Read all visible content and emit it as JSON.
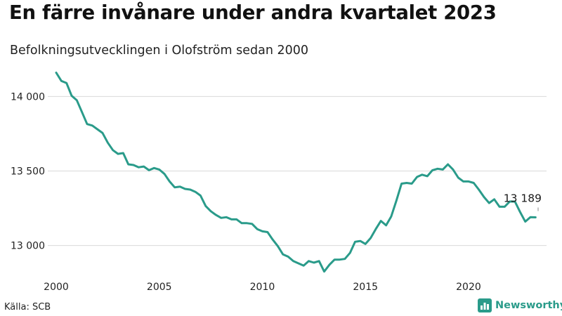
{
  "title": "En färre invånare under andra kvartalet 2023",
  "subtitle": "Befolkningsutvecklingen i Olofström sedan 2000",
  "source": "Källa: SCB",
  "brand": {
    "name": "Newsworthy",
    "icon": "newsworthy-logo-icon"
  },
  "colors": {
    "line": "#2a9b8a",
    "grid": "#d9d9d9",
    "text": "#222222"
  },
  "chart_data": {
    "type": "line",
    "title": "En färre invånare under andra kvartalet 2023",
    "subtitle": "Befolkningsutvecklingen i Olofström sedan 2000",
    "xlabel": "",
    "ylabel": "",
    "grid": true,
    "legend": "none",
    "x_ticks": [
      2000,
      2005,
      2010,
      2015,
      2020
    ],
    "x_tick_labels": [
      "2000",
      "2005",
      "2010",
      "2015",
      "2020"
    ],
    "y_ticks": [
      13000,
      13500,
      14000
    ],
    "y_tick_labels": [
      "13 000",
      "13 500",
      "14 000"
    ],
    "xlim": [
      2000,
      2023.375
    ],
    "ylim": [
      12800,
      14200
    ],
    "series": [
      {
        "frequency": "quarterly",
        "start": "2000 Q1",
        "values": [
          14160,
          14105,
          14090,
          14005,
          13975,
          13895,
          13815,
          13805,
          13780,
          13755,
          13690,
          13640,
          13615,
          13620,
          13545,
          13540,
          13525,
          13530,
          13505,
          13520,
          13510,
          13480,
          13430,
          13390,
          13395,
          13380,
          13375,
          13360,
          13335,
          13265,
          13230,
          13205,
          13185,
          13190,
          13175,
          13175,
          13150,
          13150,
          13145,
          13110,
          13095,
          13090,
          13040,
          12995,
          12940,
          12925,
          12895,
          12880,
          12865,
          12895,
          12885,
          12895,
          12825,
          12870,
          12905,
          12905,
          12910,
          12950,
          13025,
          13030,
          13010,
          13050,
          13110,
          13165,
          13135,
          13195,
          13300,
          13415,
          13420,
          13415,
          13460,
          13475,
          13465,
          13505,
          13515,
          13510,
          13545,
          13510,
          13455,
          13430,
          13430,
          13420,
          13375,
          13325,
          13285,
          13310,
          13260,
          13260,
          13295,
          13295,
          13225,
          13160,
          13190,
          13189
        ]
      }
    ],
    "annotations": [
      {
        "text": "13 189",
        "x": 2023.375,
        "y": 13189
      }
    ]
  }
}
